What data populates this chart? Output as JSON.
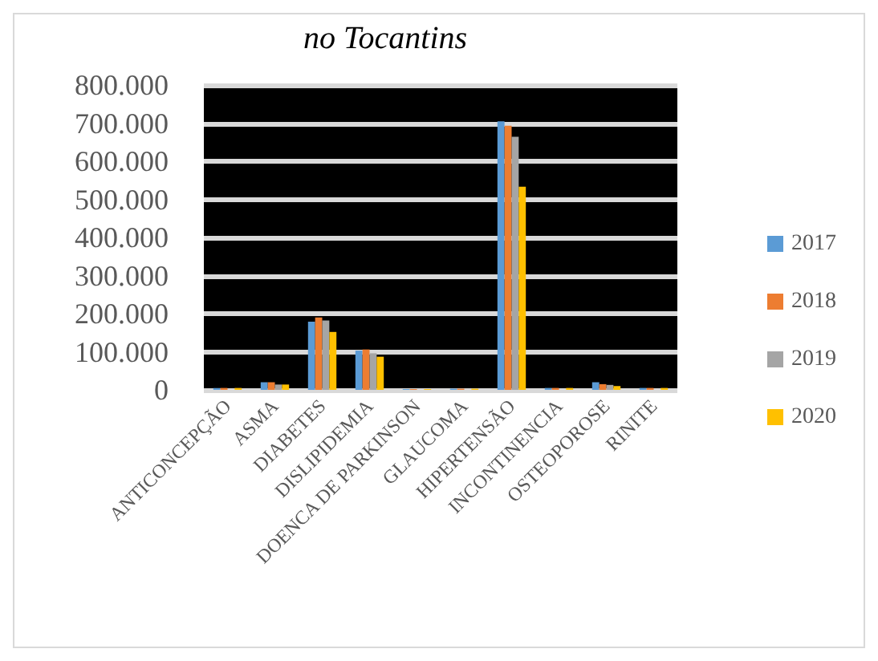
{
  "chart_data": {
    "type": "bar",
    "title": "no Tocantins",
    "categories": [
      "ANTICONCEPÇÃO",
      "ASMA",
      "DIABETES",
      "DISLIPIDEMIA",
      "DOENCA DE PARKINSON",
      "GLAUCOMA",
      "HIPERTENSÃO",
      "INCONTINENCIA",
      "OSTEOPOROSE",
      "RINITE"
    ],
    "series": [
      {
        "name": "2017",
        "color": "#5b9bd5",
        "values": [
          5000,
          20000,
          179000,
          103000,
          2000,
          3000,
          705000,
          5000,
          20000,
          5000
        ]
      },
      {
        "name": "2018",
        "color": "#ed7d31",
        "values": [
          5000,
          20000,
          190000,
          106000,
          2000,
          3000,
          693000,
          5000,
          15000,
          5000
        ]
      },
      {
        "name": "2019",
        "color": "#a5a5a5",
        "values": [
          null,
          14000,
          182000,
          96000,
          null,
          null,
          664000,
          null,
          13000,
          null
        ]
      },
      {
        "name": "2020",
        "color": "#ffc000",
        "values": [
          5000,
          14000,
          152000,
          87000,
          2000,
          3000,
          533000,
          5000,
          10000,
          5000
        ]
      }
    ],
    "ylim": [
      0,
      800000
    ],
    "yticks": [
      {
        "value": 0,
        "label": "0"
      },
      {
        "value": 100000,
        "label": "100.000"
      },
      {
        "value": 200000,
        "label": "200.000"
      },
      {
        "value": 300000,
        "label": "300.000"
      },
      {
        "value": 400000,
        "label": "400.000"
      },
      {
        "value": 500000,
        "label": "500.000"
      },
      {
        "value": 600000,
        "label": "600.000"
      },
      {
        "value": 700000,
        "label": "700.000"
      },
      {
        "value": 800000,
        "label": "800.000"
      }
    ],
    "grid": "y",
    "legend": "right"
  }
}
